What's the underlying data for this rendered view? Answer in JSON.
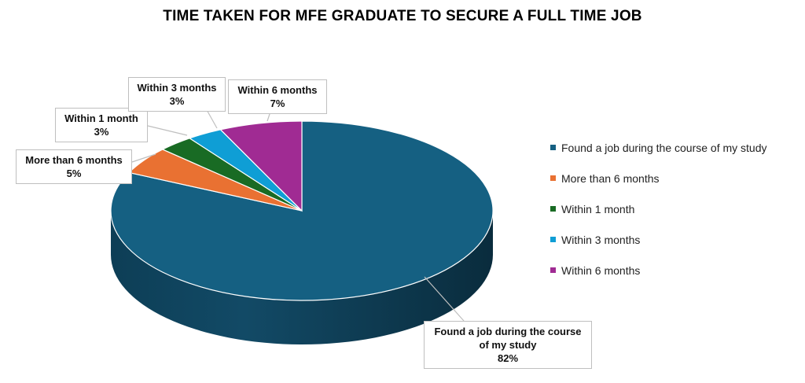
{
  "chart_data": {
    "type": "pie",
    "title": "TIME TAKEN FOR MFE GRADUATE TO SECURE A FULL TIME JOB",
    "categories": [
      "Found a job during the course of my study",
      "More than 6 months",
      "Within 1 month",
      "Within 3 months",
      "Within 6 months"
    ],
    "values": [
      82,
      5,
      3,
      3,
      7
    ],
    "value_labels": [
      "82%",
      "5%",
      "3%",
      "3%",
      "7%"
    ],
    "colors": [
      "#156082",
      "#E97132",
      "#196B24",
      "#0F9ED5",
      "#A02B93"
    ],
    "legend_position": "right",
    "style": "3d"
  },
  "callouts": {
    "found": {
      "line1": "Found a job during the course",
      "line2": "of my study",
      "pct": "82%"
    },
    "more6": {
      "line1": "More than 6 months",
      "pct": "5%"
    },
    "w1": {
      "line1": "Within 1 month",
      "pct": "3%"
    },
    "w3": {
      "line1": "Within 3 months",
      "pct": "3%"
    },
    "w6": {
      "line1": "Within 6 months",
      "pct": "7%"
    }
  }
}
